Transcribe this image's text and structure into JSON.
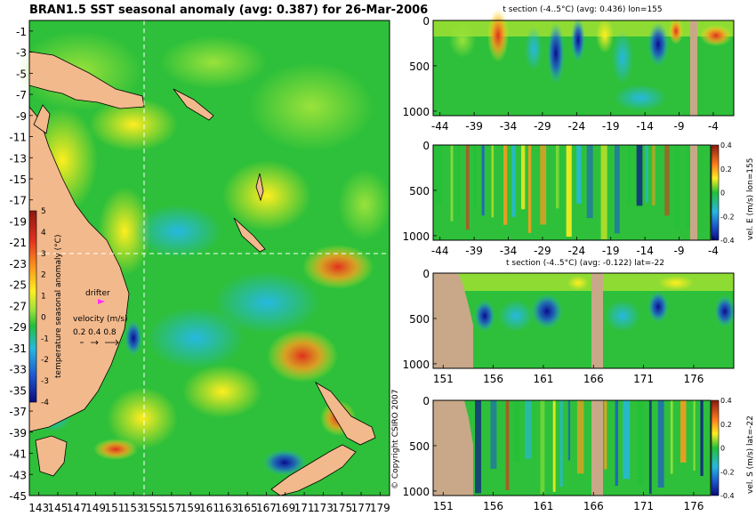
{
  "main": {
    "title": "BRAN1.5 SST seasonal anomaly (avg: 0.387) for 26-Mar-2006",
    "y_ticks": [
      "-1",
      "-3",
      "-5",
      "-7",
      "-9",
      "-11",
      "-13",
      "-15",
      "-17",
      "-19",
      "-21",
      "-23",
      "-25",
      "-27",
      "-29",
      "-31",
      "-33",
      "-35",
      "-37",
      "-39",
      "-41",
      "-43",
      "-45"
    ],
    "x_ticks": [
      "143",
      "145",
      "147",
      "149",
      "151",
      "153",
      "155",
      "157",
      "159",
      "161",
      "163",
      "165",
      "167",
      "169",
      "171",
      "173",
      "175",
      "177",
      "179"
    ],
    "colorbar_label": "temperature seasonal anomaly (°C)",
    "colorbar_ticks": [
      "5",
      "4",
      "3",
      "2",
      "1",
      "0",
      "-1",
      "-2",
      "-3",
      "-4"
    ],
    "drifter_label": "drifter",
    "velocity_label": "velocity (m/s)",
    "velocity_values": "0.2 0.4 0.8",
    "copyright": "© Copyright CSIRO 2007"
  },
  "panels": [
    {
      "title": "t section (-4..5°C) (avg: 0.436) lon=155",
      "y_ticks": [
        "0",
        "500",
        "1000"
      ],
      "x_ticks": [
        "-44",
        "-39",
        "-34",
        "-29",
        "-24",
        "-19",
        "-14",
        "-9",
        "-4"
      ],
      "side_label": ""
    },
    {
      "title": "",
      "y_ticks": [
        "0",
        "500",
        "1000"
      ],
      "x_ticks": [
        "-44",
        "-39",
        "-34",
        "-29",
        "-24",
        "-19",
        "-14",
        "-9",
        "-4"
      ],
      "side_label": "vel. E (m/s) lon=155",
      "cb_ticks": [
        "0.4",
        "0.2",
        "0",
        "-0.2",
        "-0.4"
      ]
    },
    {
      "title": "t section (-4..5°C) (avg: -0.122) lat=-22",
      "y_ticks": [
        "0",
        "500",
        "1000"
      ],
      "x_ticks": [
        "151",
        "156",
        "161",
        "166",
        "171",
        "176"
      ],
      "side_label": ""
    },
    {
      "title": "",
      "y_ticks": [
        "0",
        "500",
        "1000"
      ],
      "x_ticks": [
        "151",
        "156",
        "161",
        "166",
        "171",
        "176"
      ],
      "side_label": "vel. S (m/s) lat=-22",
      "cb_ticks": [
        "0.4",
        "0.2",
        "0",
        "-0.2",
        "-0.4"
      ]
    }
  ],
  "chart_data": [
    {
      "type": "heatmap",
      "title": "BRAN1.5 SST seasonal anomaly (avg: 0.387) for 26-Mar-2006",
      "x_range": [
        142,
        180
      ],
      "y_range": [
        -45,
        0
      ],
      "colorbar_range": [
        -4,
        5
      ],
      "marker_lon": 155,
      "marker_lat": -22
    },
    {
      "type": "heatmap",
      "title": "t section (-4..5°C) (avg: 0.436) lon=155",
      "x_range": [
        -45,
        -1
      ],
      "depth_range": [
        0,
        1050
      ],
      "value_range": [
        -4,
        5
      ],
      "average": 0.436
    },
    {
      "type": "heatmap",
      "title": "",
      "x_range": [
        -45,
        -1
      ],
      "depth_range": [
        0,
        1050
      ],
      "value_range": [
        -0.4,
        0.4
      ],
      "colorbar_label": "vel. E (m/s) lon=155"
    },
    {
      "type": "heatmap",
      "title": "t section (-4..5°C) (avg: -0.122) lat=-22",
      "x_range": [
        150,
        180
      ],
      "depth_range": [
        0,
        1050
      ],
      "value_range": [
        -4,
        5
      ],
      "average": -0.122
    },
    {
      "type": "heatmap",
      "title": "",
      "x_range": [
        150,
        180
      ],
      "depth_range": [
        0,
        1050
      ],
      "value_range": [
        -0.4,
        0.4
      ],
      "colorbar_label": "vel. S (m/s) lat=-22"
    }
  ]
}
